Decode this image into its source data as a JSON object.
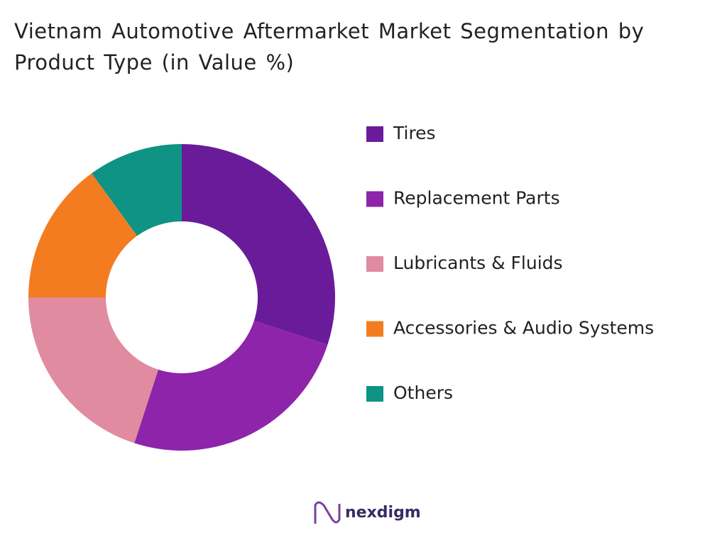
{
  "chart_data": {
    "type": "donut",
    "title": "Vietnam Automotive Aftermarket Market Segmentation by Product Type (in Value %)",
    "categories": [
      "Tires",
      "Replacement Parts",
      "Lubricants & Fluids",
      "Accessories & Audio Systems",
      "Others"
    ],
    "values": [
      30,
      25,
      20,
      15,
      10
    ],
    "colors": [
      "#6a1b9a",
      "#8e24aa",
      "#e08ba0",
      "#f47c20",
      "#0e9384"
    ],
    "legend": "right"
  },
  "brand": "nexdigm"
}
